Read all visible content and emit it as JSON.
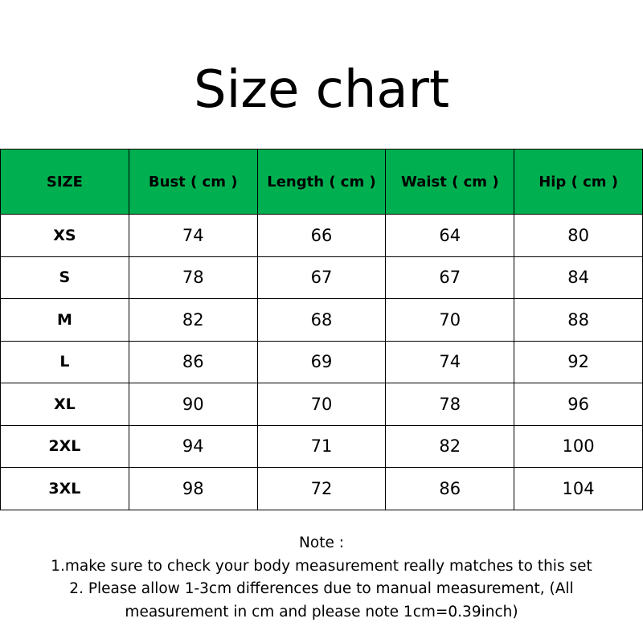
{
  "title": "Size chart",
  "accent_color": "#00b050",
  "table": {
    "headers": [
      "SIZE",
      "Bust ( cm )",
      "Length ( cm )",
      "Waist ( cm )",
      "Hip ( cm )"
    ],
    "rows": [
      [
        "XS",
        "74",
        "66",
        "64",
        "80"
      ],
      [
        "S",
        "78",
        "67",
        "67",
        "84"
      ],
      [
        "M",
        "82",
        "68",
        "70",
        "88"
      ],
      [
        "L",
        "86",
        "69",
        "74",
        "92"
      ],
      [
        "XL",
        "90",
        "70",
        "78",
        "96"
      ],
      [
        "2XL",
        "94",
        "71",
        "82",
        "100"
      ],
      [
        "3XL",
        "98",
        "72",
        "86",
        "104"
      ]
    ]
  },
  "note": {
    "heading": "Note :",
    "lines": [
      "1.make sure to check your body measurement really matches to this set",
      "2. Please allow 1-3cm differences due to manual measurement,  (All",
      "measurement in cm and please note 1cm=0.39inch)"
    ]
  }
}
